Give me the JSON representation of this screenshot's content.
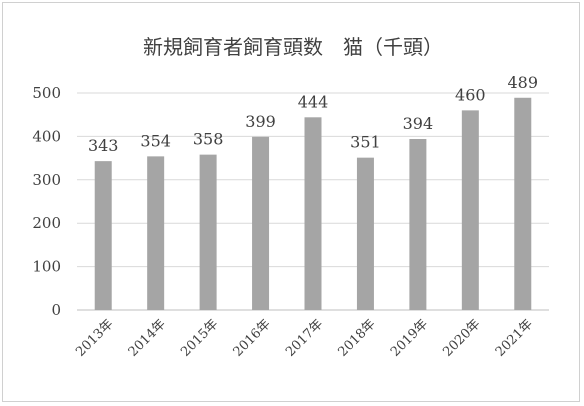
{
  "chart_data": {
    "type": "bar",
    "title": "新規飼育者飼育頭数　猫（千頭）",
    "categories": [
      "2013年",
      "2014年",
      "2015年",
      "2016年",
      "2017年",
      "2018年",
      "2019年",
      "2020年",
      "2021年"
    ],
    "values": [
      343,
      354,
      358,
      399,
      444,
      351,
      394,
      460,
      489
    ],
    "data_labels": [
      "343",
      "354",
      "358",
      "399",
      "444",
      "351",
      "394",
      "460",
      "489"
    ],
    "yticks": [
      "0",
      "100",
      "200",
      "300",
      "400",
      "500"
    ],
    "ylim": [
      0,
      500
    ],
    "grid": true,
    "legend": "none",
    "bar_color": "#a5a5a5"
  }
}
